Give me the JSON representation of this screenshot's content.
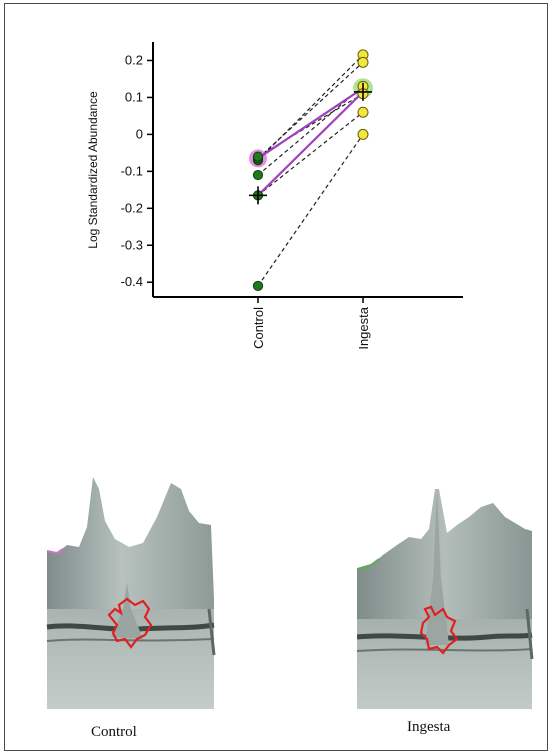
{
  "chart_data": {
    "type": "line",
    "title": "",
    "xlabel": "",
    "ylabel": "Log Standardized Abundance",
    "categories": [
      "Control",
      "Ingesta"
    ],
    "ylim": [
      -0.44,
      0.25
    ],
    "yticks": [
      0.2,
      0.1,
      0,
      -0.1,
      -0.2,
      -0.3,
      -0.4
    ],
    "ytick_labels": [
      "0.2",
      "0.1",
      "0",
      "-0.1",
      "-0.2",
      "-0.3",
      "-0.4"
    ],
    "grid": false,
    "series": [
      {
        "values": [
          -0.07,
          0.215
        ]
      },
      {
        "values": [
          -0.065,
          0.195
        ]
      },
      {
        "values": [
          -0.11,
          0.13
        ]
      },
      {
        "values": [
          -0.06,
          0.11
        ]
      },
      {
        "values": [
          -0.165,
          0.06
        ]
      },
      {
        "values": [
          -0.41,
          0.0
        ]
      }
    ],
    "mean": {
      "values": [
        -0.165,
        0.115
      ]
    },
    "highlighted": {
      "values": [
        -0.065,
        0.125
      ]
    },
    "colors": {
      "control_point": "#1f7a1f",
      "ingesta_point": "#f2e640",
      "mean_line": "#a040c0",
      "highlight_control": "#e27ae0",
      "highlight_ingesta": "#a8e08a",
      "dashed_line": "#222222"
    }
  },
  "panels": [
    {
      "caption": "Control",
      "icon": "protein-spot-3d-surface-control"
    },
    {
      "caption": "Ingesta",
      "icon": "protein-spot-3d-surface-ingesta"
    }
  ]
}
